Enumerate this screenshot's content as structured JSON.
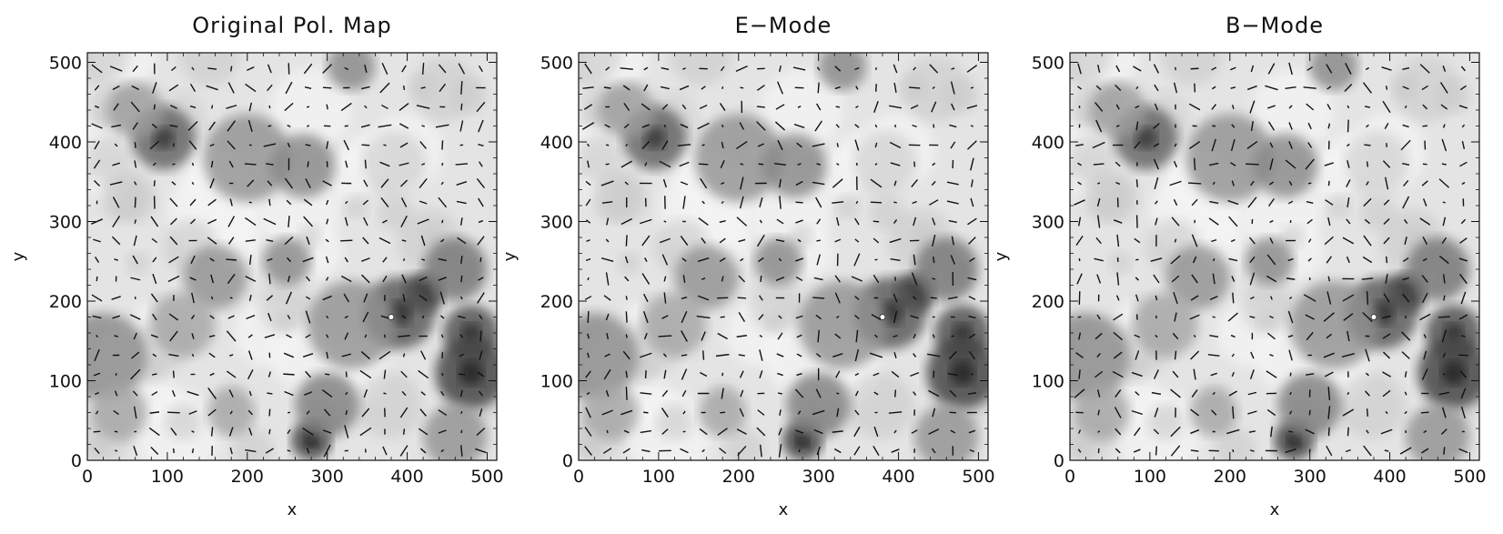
{
  "chart_data": [
    {
      "type": "heatmap",
      "title": "Original Pol. Map",
      "xlabel": "x",
      "ylabel": "y",
      "xlim": [
        0,
        512
      ],
      "ylim": [
        0,
        512
      ],
      "xticks": [
        0,
        100,
        200,
        300,
        400,
        500
      ],
      "yticks": [
        0,
        100,
        200,
        300,
        400,
        500
      ],
      "overlay": "polarization vectors (line segments) on grayscale intensity contours",
      "blobs": [
        {
          "x": 330,
          "y": 495,
          "r": 30,
          "v": 0.45
        },
        {
          "x": 95,
          "y": 405,
          "r": 40,
          "v": 0.65
        },
        {
          "x": 60,
          "y": 440,
          "r": 35,
          "v": 0.35
        },
        {
          "x": 200,
          "y": 380,
          "r": 55,
          "v": 0.4
        },
        {
          "x": 270,
          "y": 370,
          "r": 40,
          "v": 0.45
        },
        {
          "x": 420,
          "y": 210,
          "r": 25,
          "v": 0.95
        },
        {
          "x": 390,
          "y": 185,
          "r": 45,
          "v": 0.7
        },
        {
          "x": 480,
          "y": 160,
          "r": 35,
          "v": 0.75
        },
        {
          "x": 480,
          "y": 110,
          "r": 45,
          "v": 0.8
        },
        {
          "x": 460,
          "y": 240,
          "r": 40,
          "v": 0.55
        },
        {
          "x": 280,
          "y": 25,
          "r": 25,
          "v": 0.85
        },
        {
          "x": 300,
          "y": 70,
          "r": 40,
          "v": 0.5
        },
        {
          "x": 20,
          "y": 130,
          "r": 55,
          "v": 0.45
        },
        {
          "x": 40,
          "y": 60,
          "r": 35,
          "v": 0.3
        },
        {
          "x": 160,
          "y": 230,
          "r": 40,
          "v": 0.4
        },
        {
          "x": 330,
          "y": 170,
          "r": 55,
          "v": 0.4
        },
        {
          "x": 250,
          "y": 250,
          "r": 30,
          "v": 0.45
        },
        {
          "x": 120,
          "y": 170,
          "r": 40,
          "v": 0.3
        },
        {
          "x": 460,
          "y": 30,
          "r": 40,
          "v": 0.4
        },
        {
          "x": 180,
          "y": 60,
          "r": 30,
          "v": 0.3
        }
      ],
      "white_point": {
        "x": 380,
        "y": 180
      }
    },
    {
      "type": "heatmap",
      "title": "E−Mode",
      "xlabel": "x",
      "ylabel": "y",
      "xlim": [
        0,
        512
      ],
      "ylim": [
        0,
        512
      ],
      "xticks": [
        0,
        100,
        200,
        300,
        400,
        500
      ],
      "yticks": [
        0,
        100,
        200,
        300,
        400,
        500
      ],
      "overlay": "E-mode polarization vectors on grayscale intensity contours",
      "blobs": [
        {
          "x": 330,
          "y": 495,
          "r": 30,
          "v": 0.45
        },
        {
          "x": 95,
          "y": 405,
          "r": 40,
          "v": 0.65
        },
        {
          "x": 60,
          "y": 440,
          "r": 35,
          "v": 0.35
        },
        {
          "x": 200,
          "y": 380,
          "r": 55,
          "v": 0.4
        },
        {
          "x": 270,
          "y": 370,
          "r": 40,
          "v": 0.45
        },
        {
          "x": 420,
          "y": 210,
          "r": 25,
          "v": 0.95
        },
        {
          "x": 390,
          "y": 185,
          "r": 45,
          "v": 0.7
        },
        {
          "x": 480,
          "y": 160,
          "r": 35,
          "v": 0.75
        },
        {
          "x": 480,
          "y": 110,
          "r": 45,
          "v": 0.8
        },
        {
          "x": 460,
          "y": 240,
          "r": 40,
          "v": 0.55
        },
        {
          "x": 280,
          "y": 25,
          "r": 25,
          "v": 0.85
        },
        {
          "x": 300,
          "y": 70,
          "r": 40,
          "v": 0.5
        },
        {
          "x": 20,
          "y": 130,
          "r": 55,
          "v": 0.45
        },
        {
          "x": 40,
          "y": 60,
          "r": 35,
          "v": 0.3
        },
        {
          "x": 160,
          "y": 230,
          "r": 40,
          "v": 0.4
        },
        {
          "x": 330,
          "y": 170,
          "r": 55,
          "v": 0.4
        },
        {
          "x": 250,
          "y": 250,
          "r": 30,
          "v": 0.45
        },
        {
          "x": 120,
          "y": 170,
          "r": 40,
          "v": 0.3
        },
        {
          "x": 460,
          "y": 30,
          "r": 40,
          "v": 0.4
        },
        {
          "x": 180,
          "y": 60,
          "r": 30,
          "v": 0.3
        }
      ],
      "white_point": {
        "x": 380,
        "y": 180
      }
    },
    {
      "type": "heatmap",
      "title": "B−Mode",
      "xlabel": "x",
      "ylabel": "y",
      "xlim": [
        0,
        512
      ],
      "ylim": [
        0,
        512
      ],
      "xticks": [
        0,
        100,
        200,
        300,
        400,
        500
      ],
      "yticks": [
        0,
        100,
        200,
        300,
        400,
        500
      ],
      "overlay": "B-mode polarization vectors on grayscale intensity contours",
      "blobs": [
        {
          "x": 330,
          "y": 495,
          "r": 30,
          "v": 0.45
        },
        {
          "x": 95,
          "y": 405,
          "r": 40,
          "v": 0.65
        },
        {
          "x": 60,
          "y": 440,
          "r": 35,
          "v": 0.35
        },
        {
          "x": 200,
          "y": 380,
          "r": 55,
          "v": 0.4
        },
        {
          "x": 270,
          "y": 370,
          "r": 40,
          "v": 0.45
        },
        {
          "x": 420,
          "y": 210,
          "r": 25,
          "v": 0.95
        },
        {
          "x": 390,
          "y": 185,
          "r": 45,
          "v": 0.7
        },
        {
          "x": 480,
          "y": 160,
          "r": 35,
          "v": 0.75
        },
        {
          "x": 480,
          "y": 110,
          "r": 45,
          "v": 0.8
        },
        {
          "x": 460,
          "y": 240,
          "r": 40,
          "v": 0.55
        },
        {
          "x": 280,
          "y": 25,
          "r": 25,
          "v": 0.85
        },
        {
          "x": 300,
          "y": 70,
          "r": 40,
          "v": 0.5
        },
        {
          "x": 20,
          "y": 130,
          "r": 55,
          "v": 0.45
        },
        {
          "x": 40,
          "y": 60,
          "r": 35,
          "v": 0.3
        },
        {
          "x": 160,
          "y": 230,
          "r": 40,
          "v": 0.4
        },
        {
          "x": 330,
          "y": 170,
          "r": 55,
          "v": 0.4
        },
        {
          "x": 250,
          "y": 250,
          "r": 30,
          "v": 0.45
        },
        {
          "x": 120,
          "y": 170,
          "r": 40,
          "v": 0.3
        },
        {
          "x": 460,
          "y": 30,
          "r": 40,
          "v": 0.4
        },
        {
          "x": 180,
          "y": 60,
          "r": 30,
          "v": 0.3
        }
      ],
      "white_point": {
        "x": 380,
        "y": 180
      }
    }
  ]
}
